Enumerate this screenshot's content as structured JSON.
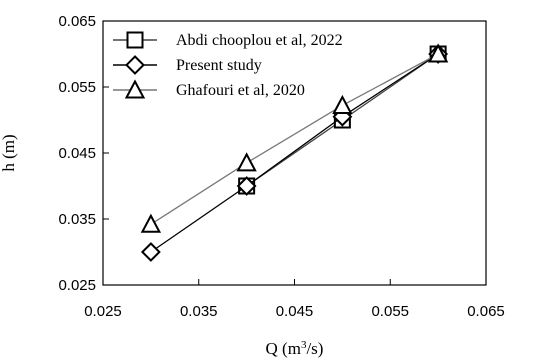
{
  "chart_data": {
    "type": "line",
    "xlabel": "Q (m³/s)",
    "ylabel": "h (m)",
    "xlim": [
      0.025,
      0.065
    ],
    "ylim": [
      0.025,
      0.065
    ],
    "x_ticks": [
      "0.025",
      "0.035",
      "0.045",
      "0.055",
      "0.065"
    ],
    "y_ticks": [
      "0.025",
      "0.035",
      "0.045",
      "0.055",
      "0.065"
    ],
    "grid": false,
    "legend_position": "top-left",
    "series": [
      {
        "name": "Abdi chooplou et al, 2022",
        "marker": "square",
        "color": "#000000",
        "line_color": "#444444",
        "x": [
          0.04,
          0.05,
          0.06
        ],
        "y": [
          0.04,
          0.05,
          0.06
        ]
      },
      {
        "name": "Present study",
        "marker": "diamond",
        "color": "#000000",
        "line_color": "#000000",
        "x": [
          0.03,
          0.04,
          0.05,
          0.06
        ],
        "y": [
          0.03,
          0.04,
          0.0505,
          0.06
        ]
      },
      {
        "name": "Ghafouri et al, 2020",
        "marker": "triangle",
        "color": "#000000",
        "line_color": "#777777",
        "x": [
          0.03,
          0.04,
          0.05,
          0.06
        ],
        "y": [
          0.0342,
          0.0435,
          0.0522,
          0.06
        ]
      }
    ]
  }
}
